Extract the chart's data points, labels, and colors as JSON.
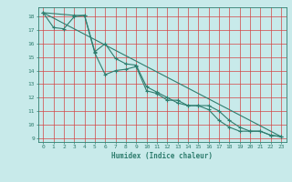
{
  "xlabel": "Humidex (Indice chaleur)",
  "ylabel": "",
  "background_color": "#c8eaea",
  "grid_color": "#d44444",
  "line_color": "#2e7d6e",
  "xlim": [
    -0.5,
    23.5
  ],
  "ylim": [
    8.7,
    18.7
  ],
  "yticks": [
    9,
    10,
    11,
    12,
    13,
    14,
    15,
    16,
    17,
    18
  ],
  "xticks": [
    0,
    1,
    2,
    3,
    4,
    5,
    6,
    7,
    8,
    9,
    10,
    11,
    12,
    13,
    14,
    15,
    16,
    17,
    18,
    19,
    20,
    21,
    22,
    23
  ],
  "line1_x": [
    0,
    1,
    2,
    3,
    4,
    5,
    6,
    7,
    8,
    9,
    10,
    11,
    12,
    13,
    14,
    15,
    16,
    17,
    18,
    19,
    20,
    21,
    22,
    23
  ],
  "line1_y": [
    18.3,
    17.2,
    17.1,
    18.0,
    18.1,
    15.3,
    13.7,
    14.0,
    14.1,
    14.3,
    12.5,
    12.3,
    11.8,
    11.8,
    11.4,
    11.4,
    11.1,
    10.3,
    9.8,
    9.5,
    9.5,
    9.5,
    9.2,
    9.1
  ],
  "line2_x": [
    0,
    3,
    4,
    5,
    6,
    7,
    8,
    9,
    10,
    11,
    12,
    13,
    14,
    15,
    16,
    17,
    18,
    19,
    20,
    21,
    22,
    23
  ],
  "line2_y": [
    18.3,
    18.1,
    18.1,
    15.4,
    16.0,
    14.9,
    14.5,
    14.4,
    12.8,
    12.4,
    12.0,
    11.6,
    11.4,
    11.4,
    11.4,
    11.0,
    10.3,
    9.8,
    9.5,
    9.5,
    9.2,
    9.1
  ],
  "line3_x": [
    0,
    23
  ],
  "line3_y": [
    18.3,
    9.1
  ]
}
